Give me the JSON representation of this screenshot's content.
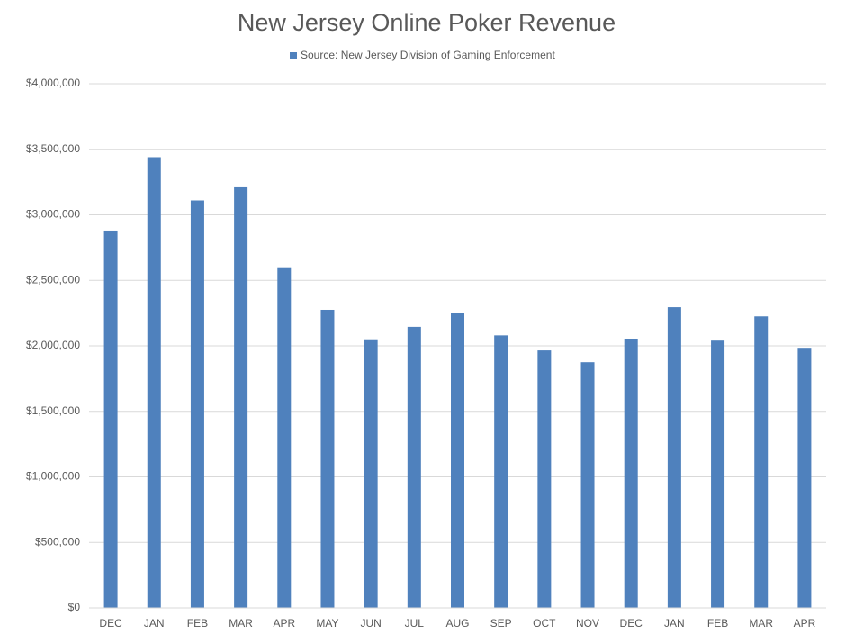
{
  "chart_data": {
    "type": "bar",
    "title": "New Jersey Online Poker Revenue",
    "categories": [
      "DEC",
      "JAN",
      "FEB",
      "MAR",
      "APR",
      "MAY",
      "JUN",
      "JUL",
      "AUG",
      "SEP",
      "OCT",
      "NOV",
      "DEC",
      "JAN",
      "FEB",
      "MAR",
      "APR"
    ],
    "series": [
      {
        "name": "Source: New Jersey Division of Gaming Enforcement",
        "color": "#4f81bd",
        "values": [
          2880000,
          3440000,
          3110000,
          3210000,
          2600000,
          2275000,
          2050000,
          2145000,
          2250000,
          2080000,
          1965000,
          1875000,
          2055000,
          2295000,
          2040000,
          2225000,
          1985000
        ]
      }
    ],
    "ylim": [
      0,
      4000000
    ],
    "yticks": [
      {
        "value": 0,
        "label": "$0"
      },
      {
        "value": 500000,
        "label": "$500,000"
      },
      {
        "value": 1000000,
        "label": "$1,000,000"
      },
      {
        "value": 1500000,
        "label": "$1,500,000"
      },
      {
        "value": 2000000,
        "label": "$2,000,000"
      },
      {
        "value": 2500000,
        "label": "$2,500,000"
      },
      {
        "value": 3000000,
        "label": "$3,000,000"
      },
      {
        "value": 3500000,
        "label": "$3,500,000"
      },
      {
        "value": 4000000,
        "label": "$4,000,000"
      }
    ],
    "grid": true,
    "legend": "top"
  }
}
